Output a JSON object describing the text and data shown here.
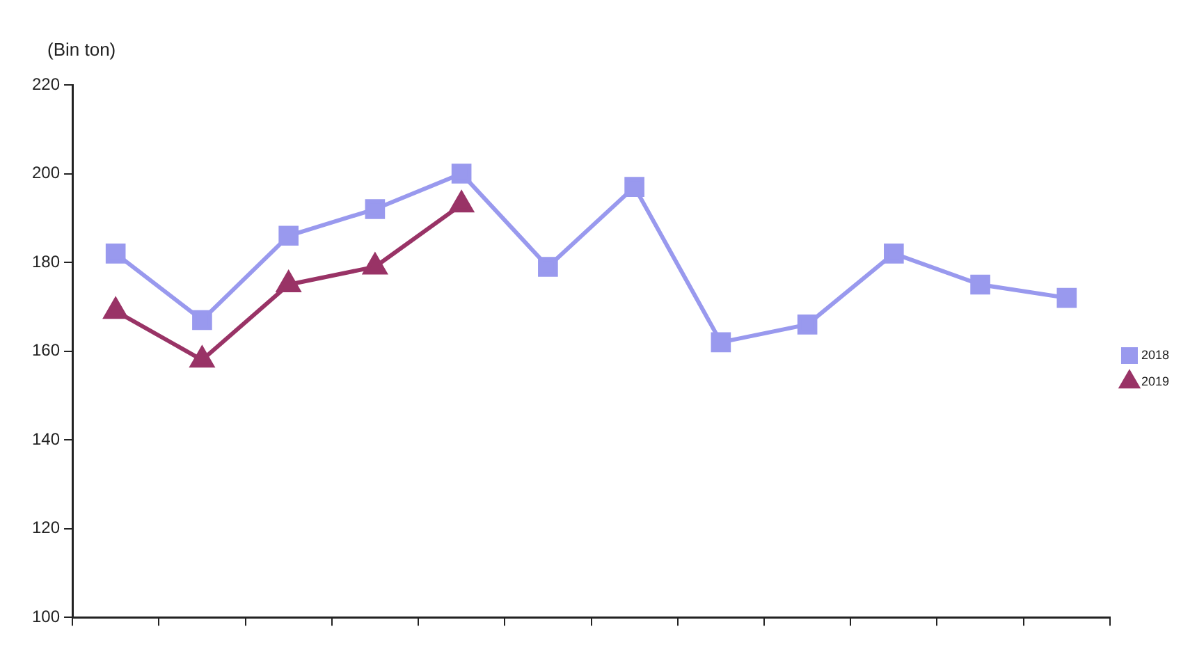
{
  "chart_data": {
    "type": "line",
    "ylabel": "(Bin ton)",
    "categories": [
      null,
      null,
      null,
      null,
      null,
      null,
      null,
      null,
      null,
      null,
      null,
      null
    ],
    "series": [
      {
        "name": "2018",
        "color": "#9999ee",
        "marker": "square",
        "values": [
          182,
          167,
          186,
          192,
          200,
          179,
          197,
          162,
          166,
          182,
          175,
          172
        ]
      },
      {
        "name": "2019",
        "color": "#993366",
        "marker": "triangle",
        "values": [
          169,
          158,
          175,
          179,
          193,
          null,
          null,
          null,
          null,
          null,
          null,
          null
        ]
      }
    ],
    "ylim": [
      100,
      220
    ],
    "yticks": [
      100,
      120,
      140,
      160,
      180,
      200,
      220
    ],
    "grid": false,
    "legend": "right"
  }
}
